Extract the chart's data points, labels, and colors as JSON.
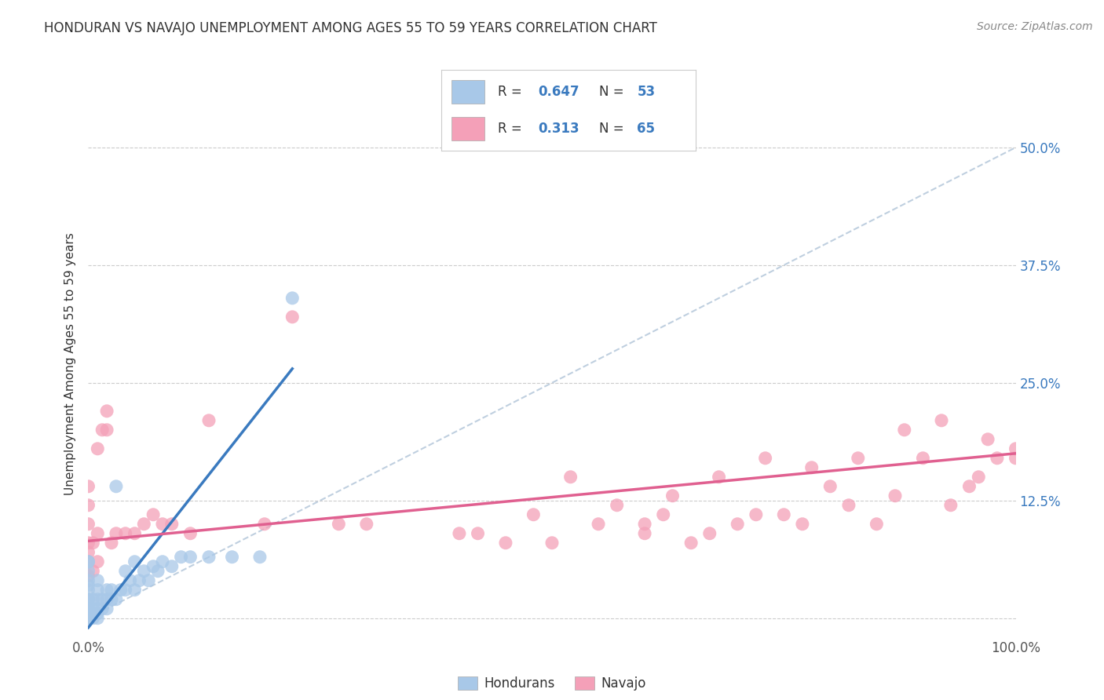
{
  "title": "HONDURAN VS NAVAJO UNEMPLOYMENT AMONG AGES 55 TO 59 YEARS CORRELATION CHART",
  "source": "Source: ZipAtlas.com",
  "ylabel": "Unemployment Among Ages 55 to 59 years",
  "xlim": [
    0,
    1.0
  ],
  "ylim": [
    -0.02,
    0.56
  ],
  "honduran_R": 0.647,
  "honduran_N": 53,
  "navajo_R": 0.313,
  "navajo_N": 65,
  "blue_scatter_color": "#a8c8e8",
  "pink_scatter_color": "#f4a0b8",
  "blue_line_color": "#3a7abf",
  "pink_line_color": "#e06090",
  "ref_line_color": "#b0c4d8",
  "legend_val_color": "#3a7abf",
  "background_color": "#ffffff",
  "grid_color": "#cccccc",
  "honduran_x": [
    0.0,
    0.0,
    0.0,
    0.0,
    0.0,
    0.0,
    0.0,
    0.0,
    0.0,
    0.0,
    0.0,
    0.0,
    0.0,
    0.0,
    0.0,
    0.005,
    0.005,
    0.005,
    0.005,
    0.01,
    0.01,
    0.01,
    0.01,
    0.01,
    0.01,
    0.015,
    0.015,
    0.02,
    0.02,
    0.02,
    0.025,
    0.025,
    0.03,
    0.03,
    0.035,
    0.04,
    0.04,
    0.045,
    0.05,
    0.05,
    0.055,
    0.06,
    0.065,
    0.07,
    0.075,
    0.08,
    0.09,
    0.1,
    0.11,
    0.13,
    0.155,
    0.185,
    0.22
  ],
  "honduran_y": [
    0.0,
    0.0,
    0.0,
    0.005,
    0.01,
    0.01,
    0.01,
    0.02,
    0.02,
    0.03,
    0.035,
    0.04,
    0.05,
    0.06,
    0.06,
    0.0,
    0.005,
    0.01,
    0.02,
    0.0,
    0.005,
    0.01,
    0.02,
    0.03,
    0.04,
    0.01,
    0.02,
    0.01,
    0.02,
    0.03,
    0.02,
    0.03,
    0.02,
    0.14,
    0.03,
    0.03,
    0.05,
    0.04,
    0.03,
    0.06,
    0.04,
    0.05,
    0.04,
    0.055,
    0.05,
    0.06,
    0.055,
    0.065,
    0.065,
    0.065,
    0.065,
    0.065,
    0.34
  ],
  "navajo_x": [
    0.0,
    0.0,
    0.0,
    0.0,
    0.0,
    0.0,
    0.0,
    0.005,
    0.005,
    0.01,
    0.01,
    0.01,
    0.015,
    0.02,
    0.02,
    0.025,
    0.03,
    0.04,
    0.05,
    0.06,
    0.07,
    0.08,
    0.09,
    0.11,
    0.13,
    0.19,
    0.22,
    0.27,
    0.3,
    0.4,
    0.42,
    0.45,
    0.48,
    0.5,
    0.52,
    0.55,
    0.57,
    0.6,
    0.6,
    0.62,
    0.63,
    0.65,
    0.67,
    0.68,
    0.7,
    0.72,
    0.73,
    0.75,
    0.77,
    0.78,
    0.8,
    0.82,
    0.83,
    0.85,
    0.87,
    0.88,
    0.9,
    0.92,
    0.93,
    0.95,
    0.96,
    0.97,
    0.98,
    1.0,
    1.0
  ],
  "navajo_y": [
    0.045,
    0.06,
    0.07,
    0.08,
    0.1,
    0.12,
    0.14,
    0.05,
    0.08,
    0.06,
    0.09,
    0.18,
    0.2,
    0.2,
    0.22,
    0.08,
    0.09,
    0.09,
    0.09,
    0.1,
    0.11,
    0.1,
    0.1,
    0.09,
    0.21,
    0.1,
    0.32,
    0.1,
    0.1,
    0.09,
    0.09,
    0.08,
    0.11,
    0.08,
    0.15,
    0.1,
    0.12,
    0.09,
    0.1,
    0.11,
    0.13,
    0.08,
    0.09,
    0.15,
    0.1,
    0.11,
    0.17,
    0.11,
    0.1,
    0.16,
    0.14,
    0.12,
    0.17,
    0.1,
    0.13,
    0.2,
    0.17,
    0.21,
    0.12,
    0.14,
    0.15,
    0.19,
    0.17,
    0.17,
    0.18
  ],
  "blue_trendline_x": [
    0.0,
    0.22
  ],
  "blue_trendline_y": [
    -0.01,
    0.265
  ],
  "pink_trendline_x": [
    0.0,
    1.0
  ],
  "pink_trendline_y": [
    0.082,
    0.175
  ]
}
